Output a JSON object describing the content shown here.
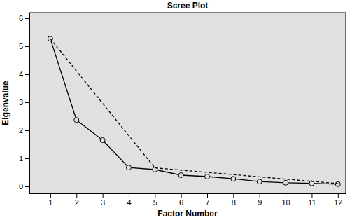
{
  "chart_data": {
    "type": "line",
    "title": "Scree Plot",
    "x_label": "Factor Number",
    "y_label": "Eigenvalue",
    "xlim": [
      0.2,
      12.3
    ],
    "xticks": [
      1,
      2,
      3,
      4,
      5,
      6,
      7,
      8,
      9,
      10,
      11,
      12
    ],
    "ylim": [
      -0.25,
      6.2
    ],
    "yticks": [
      0,
      1,
      2,
      3,
      4,
      5,
      6
    ],
    "grid": false,
    "series": [
      {
        "x": [
          1,
          2,
          3,
          4,
          5,
          6,
          7,
          8,
          9,
          10,
          11,
          12
        ],
        "values": [
          5.27,
          2.37,
          1.65,
          0.67,
          0.6,
          0.4,
          0.35,
          0.27,
          0.17,
          0.13,
          0.11,
          0.08
        ],
        "color": "#000000",
        "line_style": "solid",
        "marker": "circle"
      },
      {
        "x": [
          1,
          5,
          12
        ],
        "values": [
          5.27,
          0.66,
          0.1
        ],
        "color": "#000000",
        "line_style": "dashed",
        "marker": "none"
      }
    ]
  }
}
